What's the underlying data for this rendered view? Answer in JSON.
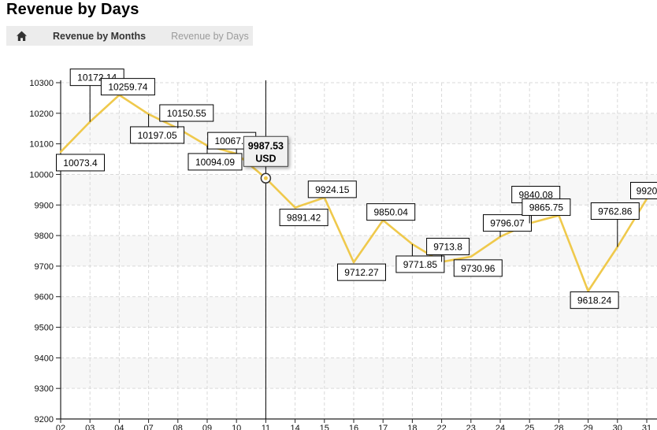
{
  "page": {
    "title": "Revenue by Days"
  },
  "breadcrumb": {
    "items": [
      {
        "label": "Revenue by Months"
      },
      {
        "label": "Revenue by Days"
      }
    ]
  },
  "chart_data": {
    "type": "line",
    "title": "Revenue by Days",
    "x_ticks": [
      "02",
      "03",
      "04",
      "07",
      "08",
      "09",
      "10",
      "11",
      "14",
      "15",
      "16",
      "17",
      "18",
      "22",
      "23",
      "24",
      "25",
      "28",
      "29",
      "30",
      "31"
    ],
    "series": [
      {
        "name": "Revenue",
        "values": [
          10073.4,
          10172.14,
          10259.74,
          10197.05,
          10150.55,
          10094.09,
          10067.8,
          9987.53,
          9891.42,
          9924.15,
          9712.27,
          9850.04,
          9771.85,
          9713.8,
          9730.96,
          9796.07,
          9840.08,
          9865.75,
          9618.24,
          9762.86,
          9920
        ]
      }
    ],
    "point_labels": [
      "10073.4",
      "10172.14",
      "10259.74",
      "10197.05",
      "10150.55",
      "10094.09",
      "10067.8",
      "9987.53",
      "9891.42",
      "9924.15",
      "9712.27",
      "9850.04",
      "9771.85",
      "9713.8",
      "9730.96",
      "9796.07",
      "9840.08",
      "9865.75",
      "9618.24",
      "9762.86",
      "9920"
    ],
    "y_ticks": [
      9200,
      9300,
      9400,
      9500,
      9600,
      9700,
      9800,
      9900,
      10000,
      10100,
      10200,
      10300
    ],
    "ylim": [
      9200,
      10300
    ],
    "grid": true,
    "alternating_bands": true,
    "legend": "none",
    "line_color": "#EFC94C",
    "band_color": "#f7f7f7",
    "grid_color": "#d9d9d9",
    "axis_color": "#222222",
    "selected_point": {
      "index": 7,
      "x": "11",
      "value": 9987.53,
      "tooltip_lines": [
        "9987.53",
        "USD"
      ]
    },
    "label_layout": [
      {
        "side": "below",
        "len": 3,
        "dx": 25
      },
      {
        "side": "above",
        "len": 46,
        "dx": 9
      },
      {
        "side": "above",
        "len": 0,
        "dx": 11
      },
      {
        "side": "below",
        "len": 16,
        "dx": 11
      },
      {
        "side": "above",
        "len": 9,
        "dx": 11
      },
      {
        "side": "below",
        "len": 10,
        "dx": 10
      },
      {
        "side": "above",
        "len": 6,
        "dx": -6
      },
      null,
      {
        "side": "below",
        "len": 2,
        "dx": 11
      },
      {
        "side": "above",
        "len": 0,
        "dx": 10
      },
      {
        "side": "below",
        "len": 2,
        "dx": 10
      },
      {
        "side": "above",
        "len": 0,
        "dx": 10
      },
      {
        "side": "below",
        "len": 15,
        "dx": 10
      },
      {
        "side": "above",
        "len": 9,
        "dx": 8
      },
      {
        "side": "below",
        "len": 4,
        "dx": 9
      },
      {
        "side": "above",
        "len": 7,
        "dx": 9
      },
      {
        "side": "above",
        "len": 26,
        "dx": 8
      },
      {
        "side": "above",
        "len": 0,
        "dx": -16
      },
      {
        "side": "below",
        "len": 1,
        "dx": 8
      },
      {
        "side": "above",
        "len": 35,
        "dx": -3
      },
      {
        "side": "above",
        "len": 0,
        "dx": 0
      }
    ]
  }
}
